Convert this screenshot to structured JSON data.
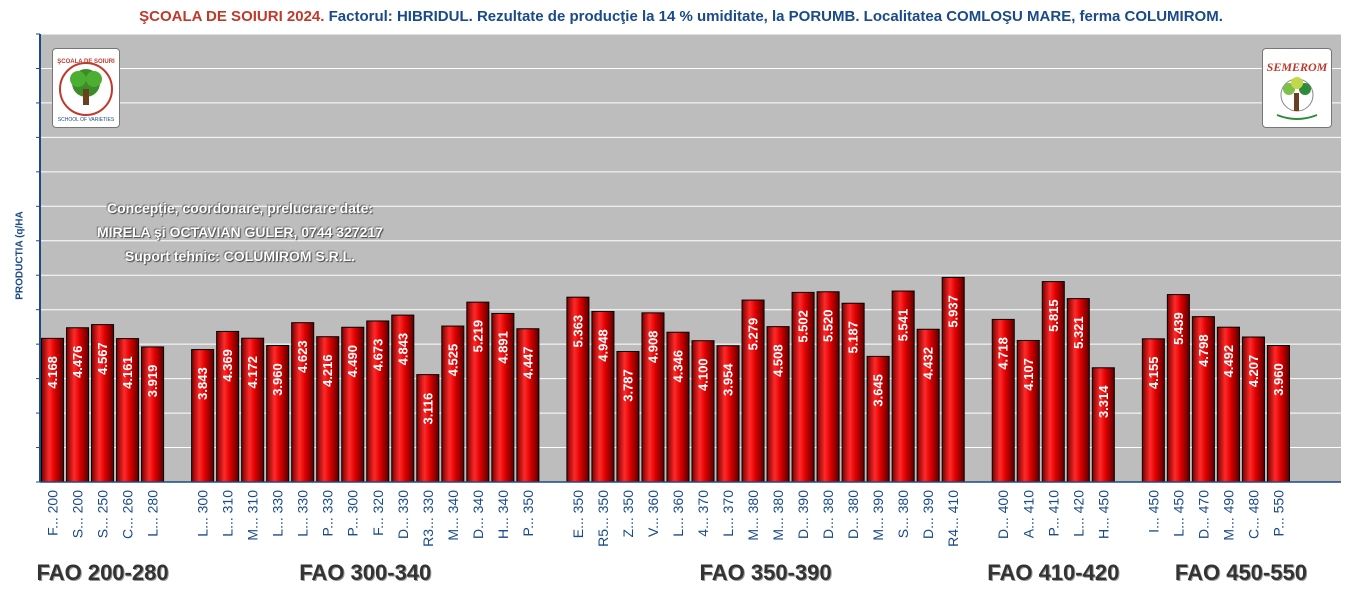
{
  "title": {
    "part1": "ŞCOALA DE SOIURI 2024.",
    "part2": "Factorul: HIBRIDUL. Rezultate de producţie la 14 % umiditate, la PORUMB. Localitatea COMLOŞU MARE, ferma COLUMIROM."
  },
  "credits": {
    "line1": "Concepție, coordonare, prelucrare date:",
    "line2": "MIRELA şi OCTAVIAN GULER, 0744 327217",
    "line3": "Suport tehnic: COLUMIROM S.R.L."
  },
  "logos": {
    "left": "ŞCOALA DE SOIURI — SCHOOL OF VARIETIES",
    "right": "SEMEROM"
  },
  "colors": {
    "plot_background": "#bdbdbd",
    "bar": "#e00000",
    "axis": "#1a4a8a"
  },
  "chart_data": {
    "type": "bar",
    "title": "",
    "xlabel": "",
    "ylabel": "PRODUCTIA (q/HA",
    "ylim": [
      0,
      13000
    ],
    "grid": true,
    "groups": [
      {
        "label": "FAO 200-280",
        "start": 0,
        "end": 4
      },
      {
        "label": "FAO 300-340",
        "start": 5,
        "end": 18
      },
      {
        "label": "FAO 350-390",
        "start": 19,
        "end": 34
      },
      {
        "label": "FAO 410-420",
        "start": 35,
        "end": 39
      },
      {
        "label": "FAO 450-550",
        "start": 40,
        "end": 47
      }
    ],
    "categories": [
      "F... 200",
      "S... 200",
      "S... 250",
      "C... 260",
      "L... 280",
      "L... 300",
      "L... 310",
      "M... 310",
      "L... 330",
      "L... 330",
      "P... 330",
      "P... 300",
      "F... 320",
      "D... 330",
      "R3... 330",
      "M... 340",
      "D... 340",
      "H... 340",
      "P... 350",
      "E... 350",
      "R5... 350",
      "Z... 350",
      "V... 360",
      "L... 360",
      "4... 370",
      "L... 370",
      "M... 380",
      "M... 380",
      "D... 390",
      "D... 380",
      "D... 380",
      "M... 390",
      "S... 380",
      "D... 390",
      "R4... 410",
      "D... 400",
      "A... 410",
      "P... 410",
      "L... 420",
      "H... 450",
      "I... 450",
      "L... 450",
      "D... 470",
      "M... 490",
      "C... 480",
      "P... 550"
    ],
    "values": [
      4168,
      4476,
      4567,
      4161,
      3919,
      3843,
      4369,
      4172,
      3960,
      4623,
      4216,
      4490,
      4673,
      4843,
      3116,
      4525,
      5219,
      4891,
      4447,
      5363,
      4948,
      3787,
      4908,
      4346,
      4100,
      3954,
      5279,
      4508,
      5502,
      5520,
      5187,
      3645,
      5541,
      4432,
      5937,
      4718,
      4107,
      5815,
      5321,
      3314,
      4155,
      5439,
      4798,
      4492,
      4207,
      3960
    ],
    "data_labels": [
      "4.168",
      "4.476",
      "4.567",
      "4.161",
      "3.919",
      "3.843",
      "4.369",
      "4.172",
      "3.960",
      "4.623",
      "4.216",
      "4.490",
      "4.673",
      "4.843",
      "3.116",
      "4.525",
      "5.219",
      "4.891",
      "4.447",
      "5.363",
      "4.948",
      "3.787",
      "4.908",
      "4.346",
      "4.100",
      "3.954",
      "5.279",
      "4.508",
      "5.502",
      "5.520",
      "5.187",
      "3.645",
      "5.541",
      "4.432",
      "5.937",
      "4.718",
      "4.107",
      "5.815",
      "5.321",
      "3.314",
      "4.155",
      "5.439",
      "4.798",
      "4.492",
      "4.207",
      "3.960"
    ]
  }
}
